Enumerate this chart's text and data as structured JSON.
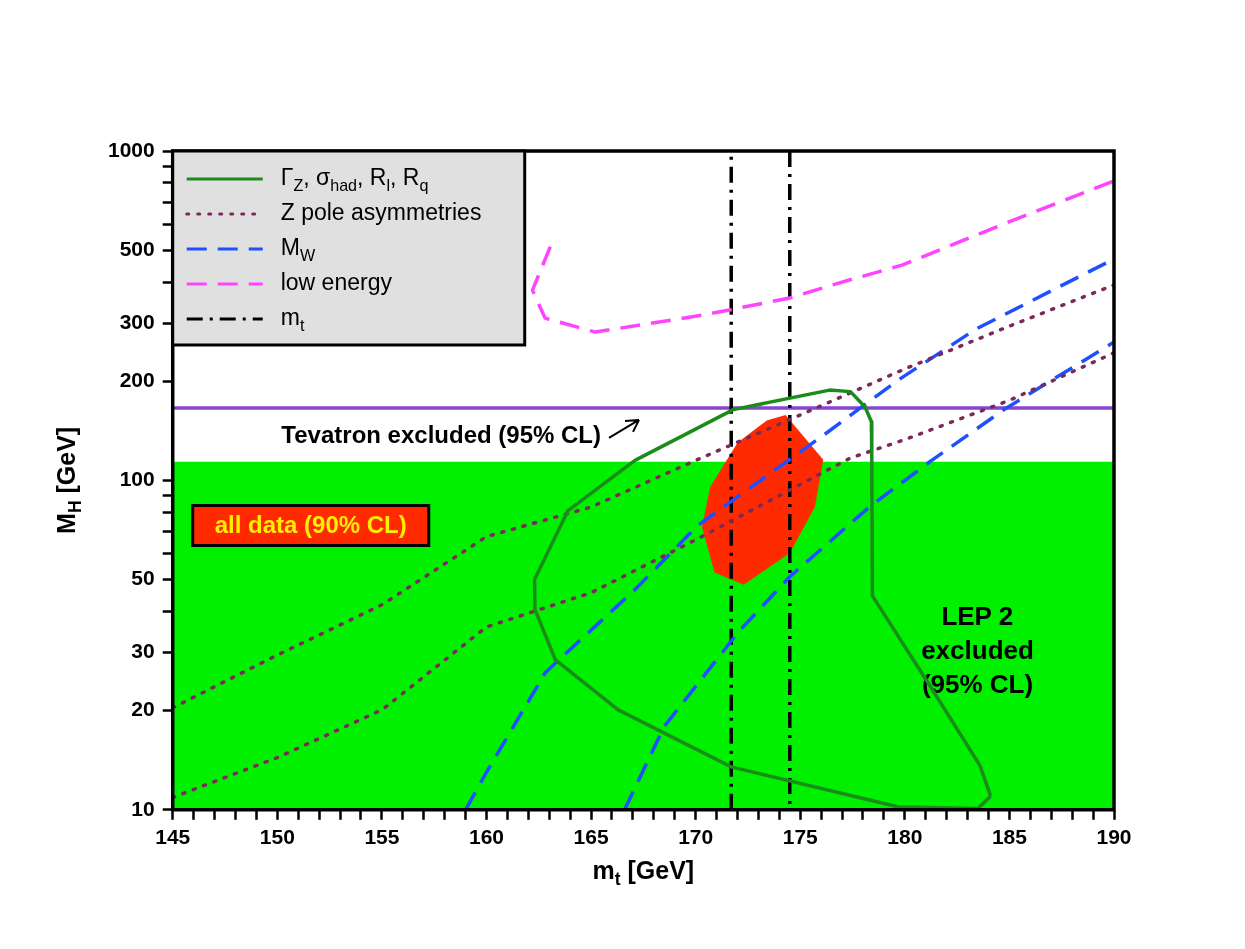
{
  "chart_data": {
    "type": "line",
    "xlabel": "m$_{t}$ [GeV]",
    "ylabel": "M$_{H}$ [GeV]",
    "log": "y",
    "grid": false,
    "legend": "top left",
    "xlim": [
      145,
      190
    ],
    "xticks": [
      145,
      {
        "value": 146,
        "label": null
      },
      {
        "value": 147,
        "label": null
      },
      {
        "value": 148,
        "label": null
      },
      {
        "value": 149,
        "label": null
      },
      150,
      {
        "value": 151,
        "label": null
      },
      {
        "value": 152,
        "label": null
      },
      {
        "value": 153,
        "label": null
      },
      {
        "value": 154,
        "label": null
      },
      155,
      {
        "value": 156,
        "label": null
      },
      {
        "value": 157,
        "label": null
      },
      {
        "value": 158,
        "label": null
      },
      {
        "value": 159,
        "label": null
      },
      160,
      {
        "value": 161,
        "label": null
      },
      {
        "value": 162,
        "label": null
      },
      {
        "value": 163,
        "label": null
      },
      {
        "value": 164,
        "label": null
      },
      165,
      {
        "value": 166,
        "label": null
      },
      {
        "value": 167,
        "label": null
      },
      {
        "value": 168,
        "label": null
      },
      {
        "value": 169,
        "label": null
      },
      170,
      {
        "value": 171,
        "label": null
      },
      {
        "value": 172,
        "label": null
      },
      {
        "value": 173,
        "label": null
      },
      {
        "value": 174,
        "label": null
      },
      175,
      {
        "value": 176,
        "label": null
      },
      {
        "value": 177,
        "label": null
      },
      {
        "value": 178,
        "label": null
      },
      {
        "value": 179,
        "label": null
      },
      180,
      {
        "value": 181,
        "label": null
      },
      {
        "value": 182,
        "label": null
      },
      {
        "value": 183,
        "label": null
      },
      {
        "value": 184,
        "label": null
      },
      185,
      {
        "value": 186,
        "label": null
      },
      {
        "value": 187,
        "label": null
      },
      {
        "value": 188,
        "label": null
      },
      {
        "value": 189,
        "label": null
      },
      190
    ],
    "ylim": [
      10,
      1000
    ],
    "yticks": [
      10,
      20,
      30,
      {
        "value": 40,
        "label": null
      },
      50,
      {
        "value": 60,
        "label": null
      },
      {
        "value": 70,
        "label": null
      },
      {
        "value": 80,
        "label": null
      },
      {
        "value": 90,
        "label": null
      },
      100,
      200,
      300,
      {
        "value": 400,
        "label": null
      },
      500,
      {
        "value": 600,
        "label": null
      },
      {
        "value": 700,
        "label": null
      },
      {
        "value": 800,
        "label": null
      },
      {
        "value": 900,
        "label": null
      },
      1000
    ],
    "bands": [
      {
        "axis": "y",
        "from": 10,
        "to": 114,
        "label": "LEP 2\nexcluded\n(95% CL)",
        "color": "#00f000"
      }
    ],
    "ref_lines": [
      {
        "axis": "y",
        "value": 166,
        "label": "Tevatron excluded (95% CL)",
        "color": "#8844cc"
      }
    ],
    "series": [
      {
        "type": "area",
        "name": "all data (90% CL)",
        "color": "#ff2a00",
        "x": [
          174.3,
          176.1,
          175.7,
          174.5,
          172.3,
          170.9,
          170.3,
          170.7,
          172.0,
          173.4
        ],
        "values": [
          158,
          115.5,
          83,
          60.2,
          48.2,
          52.5,
          72.3,
          95.6,
          130,
          152
        ]
      },
      {
        "name": "Γ$_{Z}$, σ$_{had}$, R$_{l}$, R$_{q}$",
        "color": "#1a8c1a",
        "line_style": "solid",
        "x": [
          162.3,
          163.9,
          167.1,
          171.8,
          176.4,
          177.4,
          178.1,
          178.4,
          null,
          178.4,
          178.42,
          178.45,
          181.2,
          183.6,
          184.1,
          null,
          162.3,
          162.32,
          163.3,
          166.3,
          171.7,
          179.7,
          183.5,
          184.1
        ],
        "values": [
          50,
          81,
          115,
          164,
          188,
          186,
          167,
          151,
          null,
          151,
          120,
          44.6,
          23.8,
          13.6,
          11,
          null,
          50,
          40.5,
          28.5,
          20.1,
          13.5,
          10.2,
          10.1,
          11
        ]
      },
      {
        "name": "Z pole asymmetries",
        "color": "#7a2a5a",
        "line_style": "dotted",
        "x": [
          145,
          150,
          155,
          160,
          165,
          170,
          175,
          180,
          185,
          190,
          null,
          145,
          150,
          155,
          160,
          165,
          170,
          177.4,
          180,
          185,
          190
        ],
        "values": [
          20.4,
          29.5,
          41.9,
          67.5,
          83,
          115,
          158,
          218,
          294,
          392,
          null,
          10.9,
          14.4,
          20.1,
          35.9,
          45.6,
          66,
          117,
          133,
          175,
          244
        ]
      },
      {
        "name": "M$_{W}$",
        "color": "#1f4fff",
        "line_style": "dashed",
        "x": [
          159.0,
          160.0,
          162.8,
          163.3,
          167.1,
          170.1,
          176.1,
          179.7,
          183.4,
          190,
          null,
          166.6,
          168.5,
          172.0,
          174.5,
          178.3,
          181.2,
          184.8,
          190
        ],
        "values": [
          10,
          13,
          26,
          27.9,
          46.6,
          73,
          137,
          202,
          288,
          470,
          null,
          10,
          17.9,
          34.4,
          51,
          83,
          114,
          165,
          263
        ]
      },
      {
        "name": "low energy",
        "color": "#ff44ff",
        "line_style": "dashed",
        "x": [
          163.05,
          162.2,
          162.8,
          165.2,
          170.4,
          174.5,
          177.0,
          179.9,
          184.6,
          190
        ],
        "values": [
          512,
          378,
          311,
          282,
          318,
          358,
          400,
          451,
          596,
          811
        ]
      },
      {
        "name": "m$_{t}$",
        "color": "#000000",
        "line_style": "dashdot",
        "x": [
          171.7,
          171.7,
          null,
          174.5,
          174.5
        ],
        "values": [
          10,
          1000,
          null,
          1000,
          10
        ]
      }
    ]
  }
}
